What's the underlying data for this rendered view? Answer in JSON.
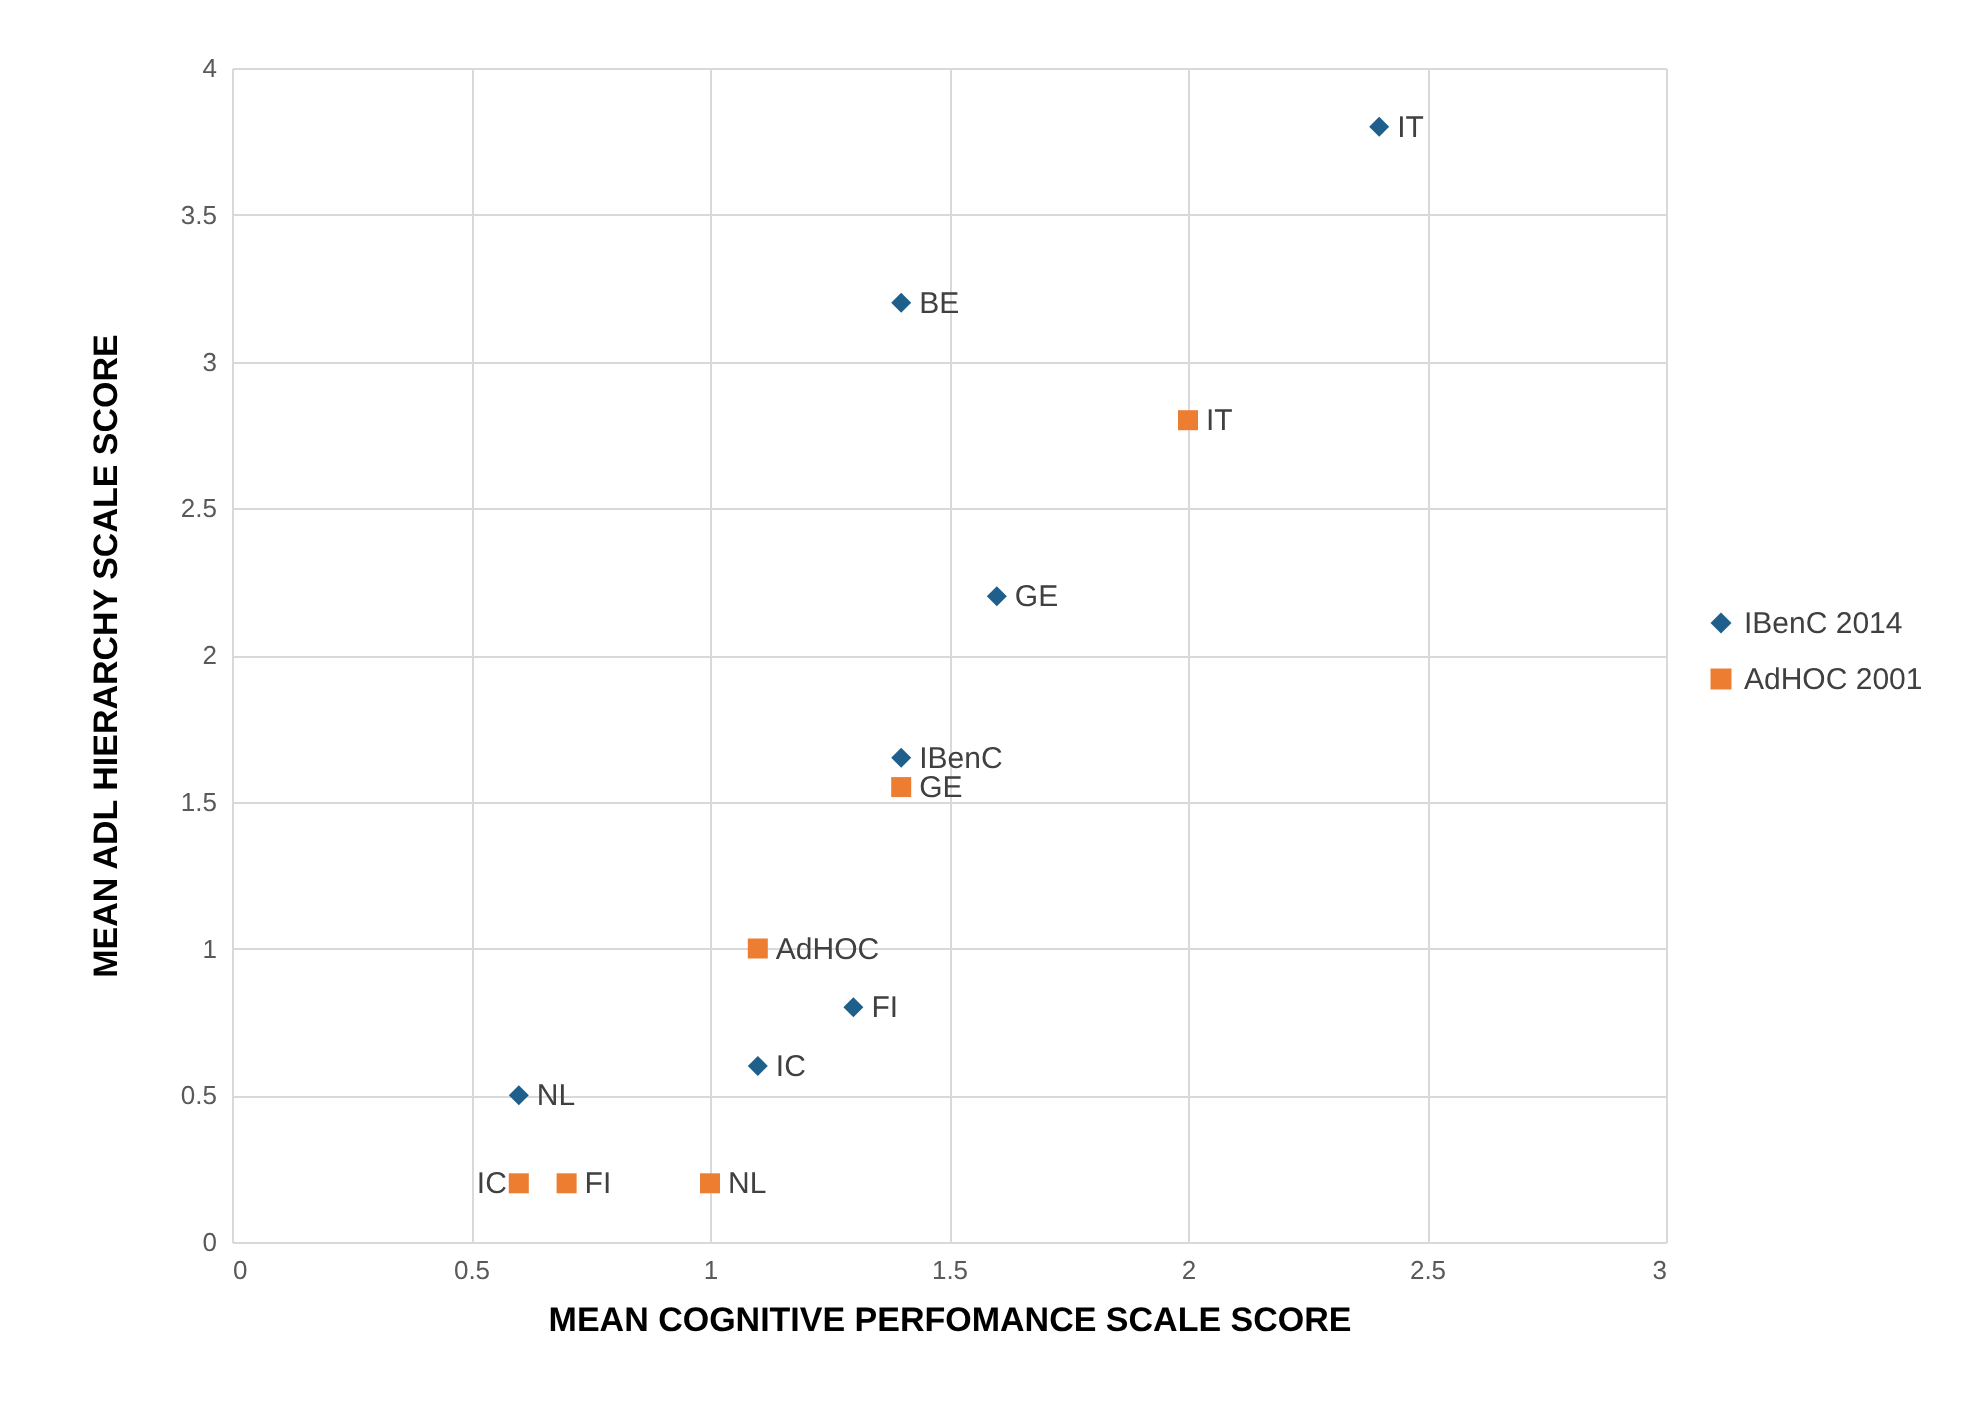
{
  "chart_data": {
    "type": "scatter",
    "xlabel": "MEAN COGNITIVE PERFOMANCE SCALE SCORE",
    "ylabel": "MEAN ADL HIERARCHY SCALE SCORE",
    "xlim": [
      0,
      3
    ],
    "xticks": [
      0,
      0.5,
      1,
      1.5,
      2,
      2.5,
      3
    ],
    "ylim": [
      0,
      4
    ],
    "yticks": [
      0,
      0.5,
      1,
      1.5,
      2,
      2.5,
      3,
      3.5,
      4
    ],
    "grid": true,
    "legend": "right",
    "series": [
      {
        "name": "IBenC 2014",
        "color": "#1f5f8b",
        "marker": "diamond",
        "x": [
          2.4,
          1.4,
          1.6,
          1.4,
          1.3,
          1.1,
          0.6
        ],
        "values": [
          3.8,
          3.2,
          2.2,
          1.65,
          0.8,
          0.6,
          0.5
        ],
        "value_labels": [
          "IT",
          "BE",
          "GE",
          "IBenC",
          "FI",
          "IC",
          "NL"
        ]
      },
      {
        "name": "AdHOC 2001",
        "color": "#ed7d31",
        "marker": "square",
        "x": [
          2.0,
          1.4,
          1.1,
          0.6,
          0.7,
          1.0
        ],
        "values": [
          2.8,
          1.55,
          1.0,
          0.2,
          0.2,
          0.2
        ],
        "value_labels": [
          "IT",
          "GE",
          "AdHOC",
          "IC",
          "FI",
          "NL"
        ]
      }
    ]
  }
}
